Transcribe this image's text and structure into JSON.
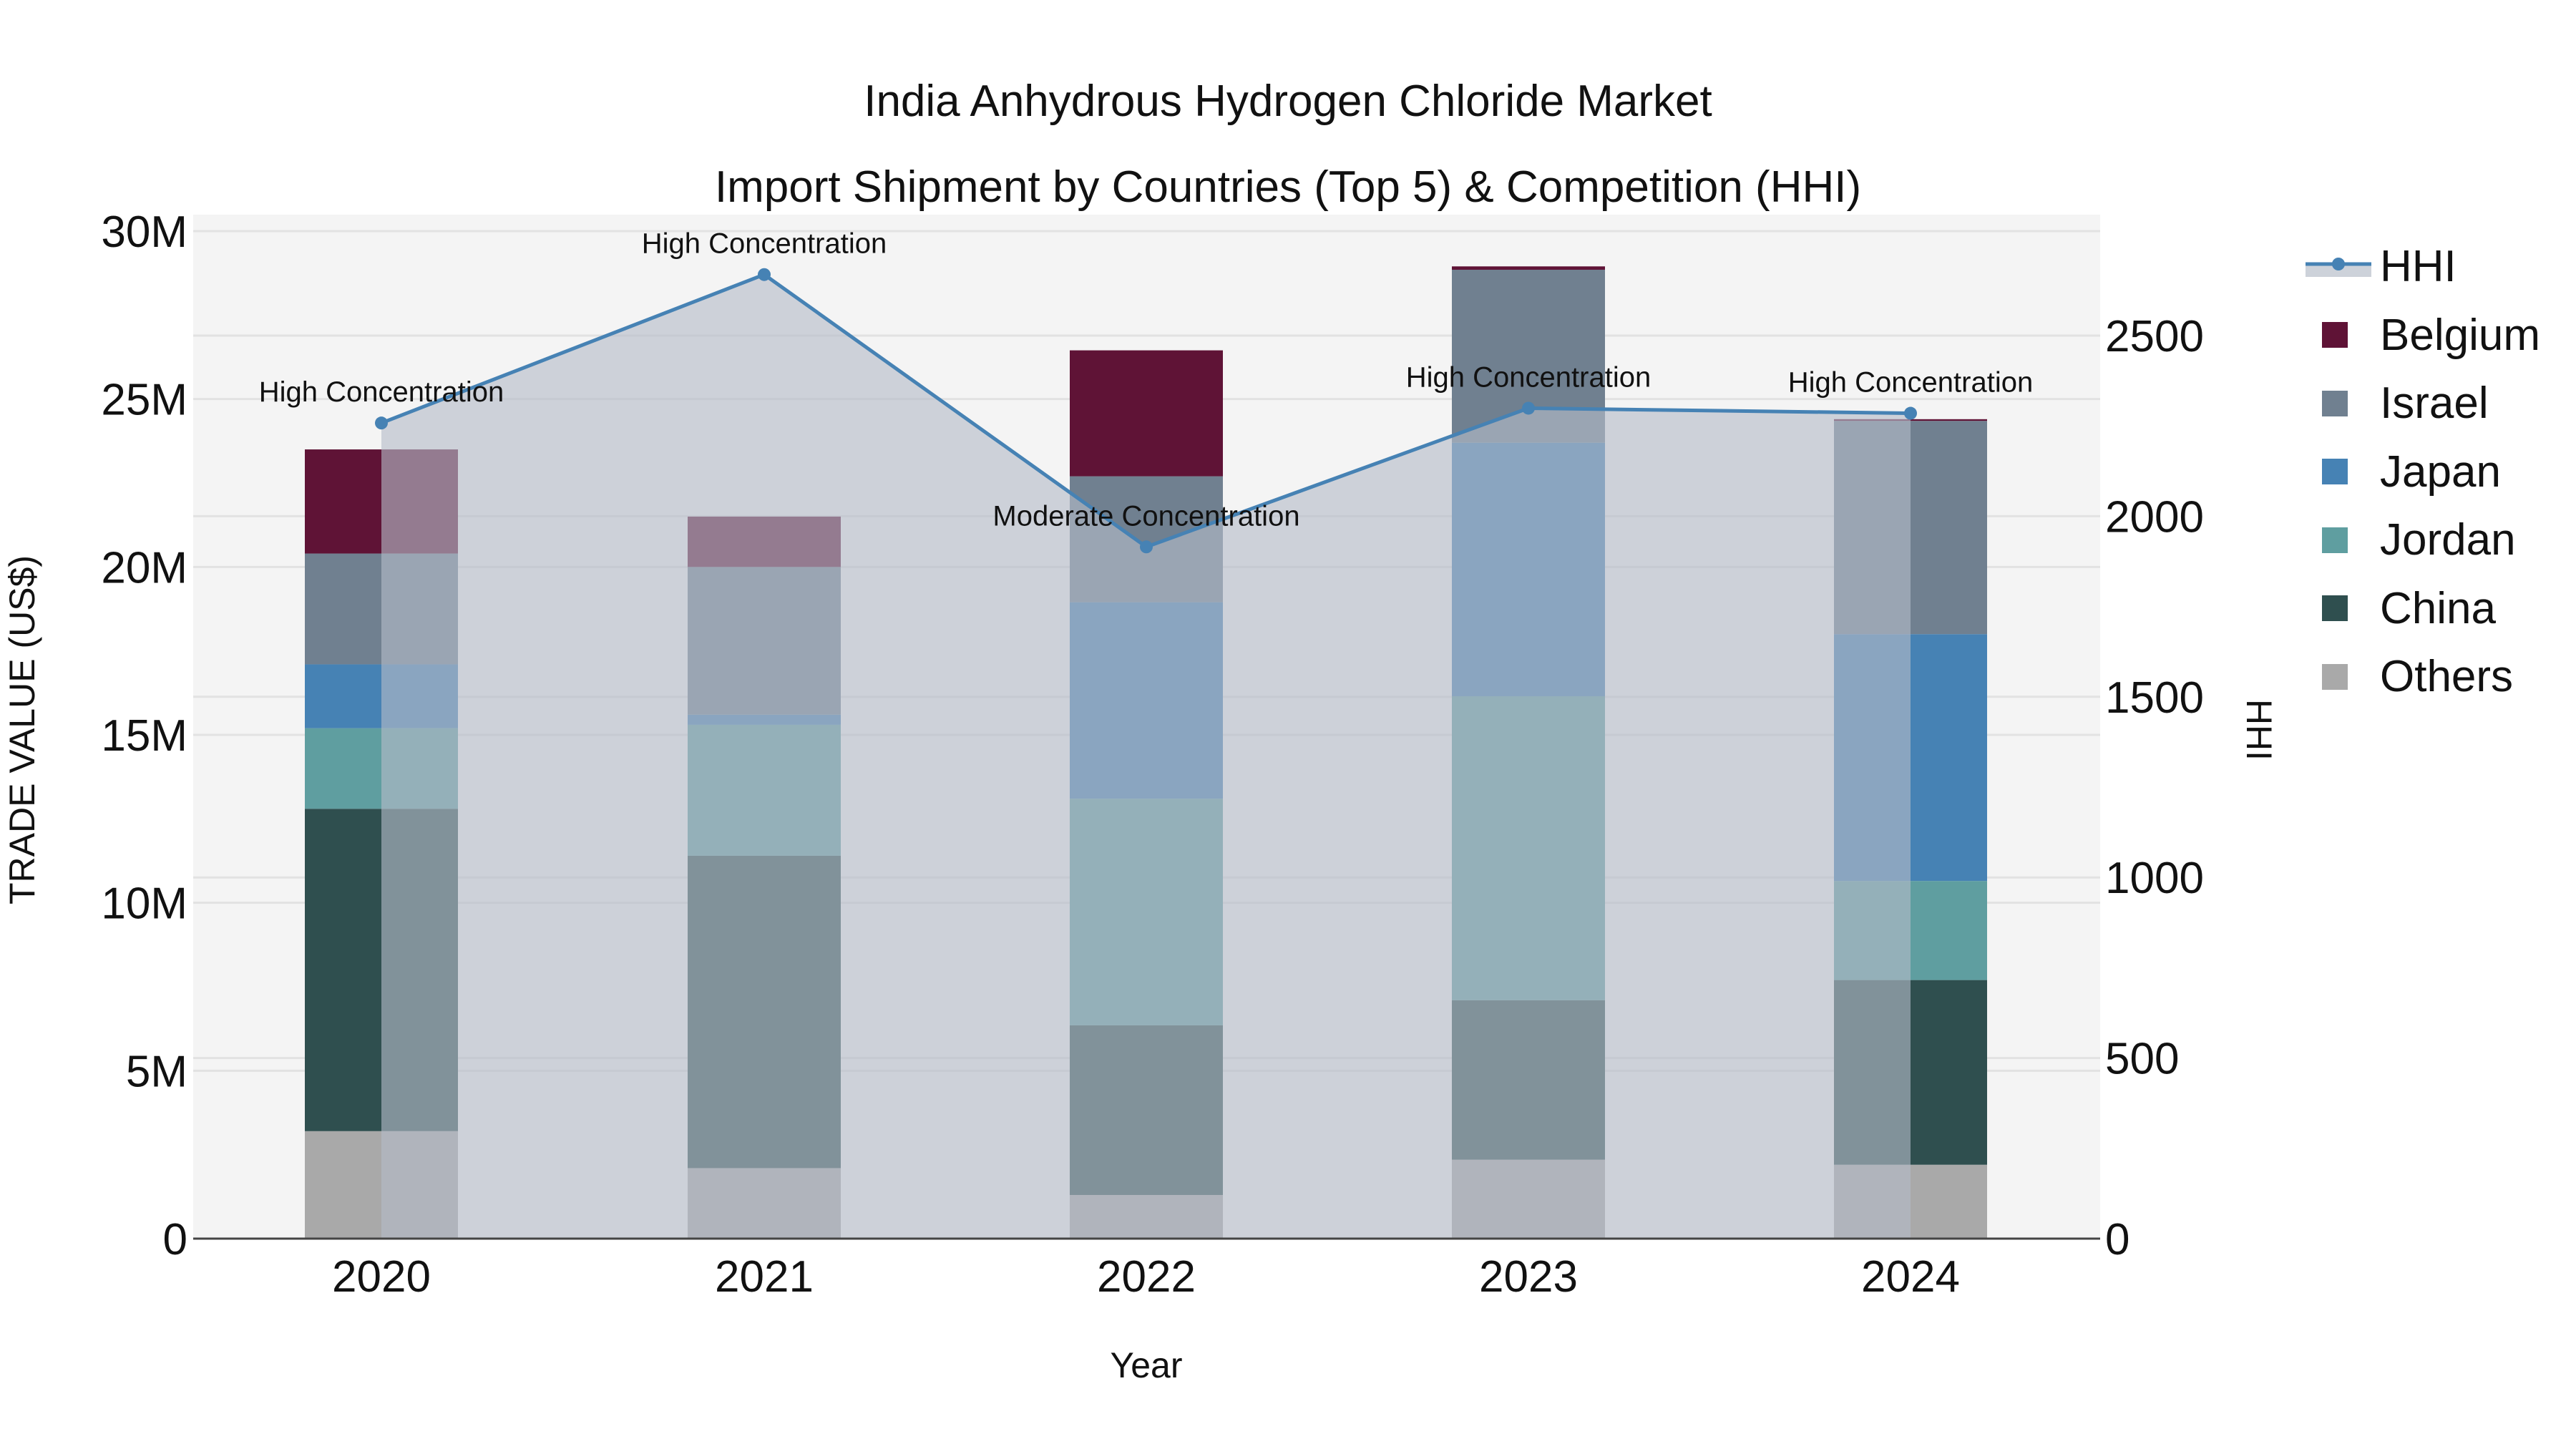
{
  "title": {
    "line1": "India Anhydrous Hydrogen Chloride Market",
    "line2": "Import Shipment by Countries (Top 5) & Competition (HHI)"
  },
  "axes": {
    "x_title": "Year",
    "y_left_title": "TRADE VALUE (US$)",
    "y_right_title": "HHI",
    "y_left_ticks": [
      "0",
      "5M",
      "10M",
      "15M",
      "20M",
      "25M",
      "30M"
    ],
    "y_right_ticks": [
      "0",
      "500",
      "1000",
      "1500",
      "2000",
      "2500"
    ],
    "x_ticks": [
      "2020",
      "2021",
      "2022",
      "2023",
      "2024"
    ]
  },
  "legend": [
    {
      "label": "HHI",
      "type": "line",
      "color": "#4682B4"
    },
    {
      "label": "Belgium",
      "type": "bar",
      "color": "#5F1336"
    },
    {
      "label": "Israel",
      "type": "bar",
      "color": "#708090"
    },
    {
      "label": "Japan",
      "type": "bar",
      "color": "#4682B4"
    },
    {
      "label": "Jordan",
      "type": "bar",
      "color": "#5F9EA0"
    },
    {
      "label": "China",
      "type": "bar",
      "color": "#2F4F4F"
    },
    {
      "label": "Others",
      "type": "bar",
      "color": "#A9A9A9"
    }
  ],
  "chart_data": {
    "type": "bar",
    "stacked": true,
    "title": "India Anhydrous Hydrogen Chloride Market Import Shipment by Countries (Top 5) & Competition (HHI)",
    "xlabel": "Year",
    "ylabel": "TRADE VALUE (US$)",
    "y2label": "HHI",
    "ylim": [
      0,
      30000000
    ],
    "y2lim": [
      0,
      2800
    ],
    "grid": true,
    "legend_position": "right",
    "categories": [
      "2020",
      "2021",
      "2022",
      "2023",
      "2024"
    ],
    "series": [
      {
        "name": "Others",
        "color": "#A9A9A9",
        "values": [
          3200000,
          2100000,
          1300000,
          2350000,
          2200000
        ]
      },
      {
        "name": "China",
        "color": "#2F4F4F",
        "values": [
          9600000,
          9300000,
          5050000,
          4750000,
          5500000
        ]
      },
      {
        "name": "Jordan",
        "color": "#5F9EA0",
        "values": [
          2400000,
          3900000,
          6750000,
          9050000,
          2950000
        ]
      },
      {
        "name": "Japan",
        "color": "#4682B4",
        "values": [
          1900000,
          300000,
          5850000,
          7550000,
          7350000
        ]
      },
      {
        "name": "Israel",
        "color": "#708090",
        "values": [
          3300000,
          4400000,
          3750000,
          5150000,
          6350000
        ]
      },
      {
        "name": "Belgium",
        "color": "#5F1336",
        "values": [
          3100000,
          1500000,
          3750000,
          100000,
          50000
        ]
      }
    ],
    "line_series": {
      "name": "HHI",
      "axis": "right",
      "type": "area-line",
      "color": "#4682B4",
      "values": [
        2258,
        2669,
        1915,
        2299,
        2285
      ],
      "annotations": [
        "High Concentration",
        "High Concentration",
        "Moderate Concentration",
        "High Concentration",
        "High Concentration"
      ]
    }
  }
}
